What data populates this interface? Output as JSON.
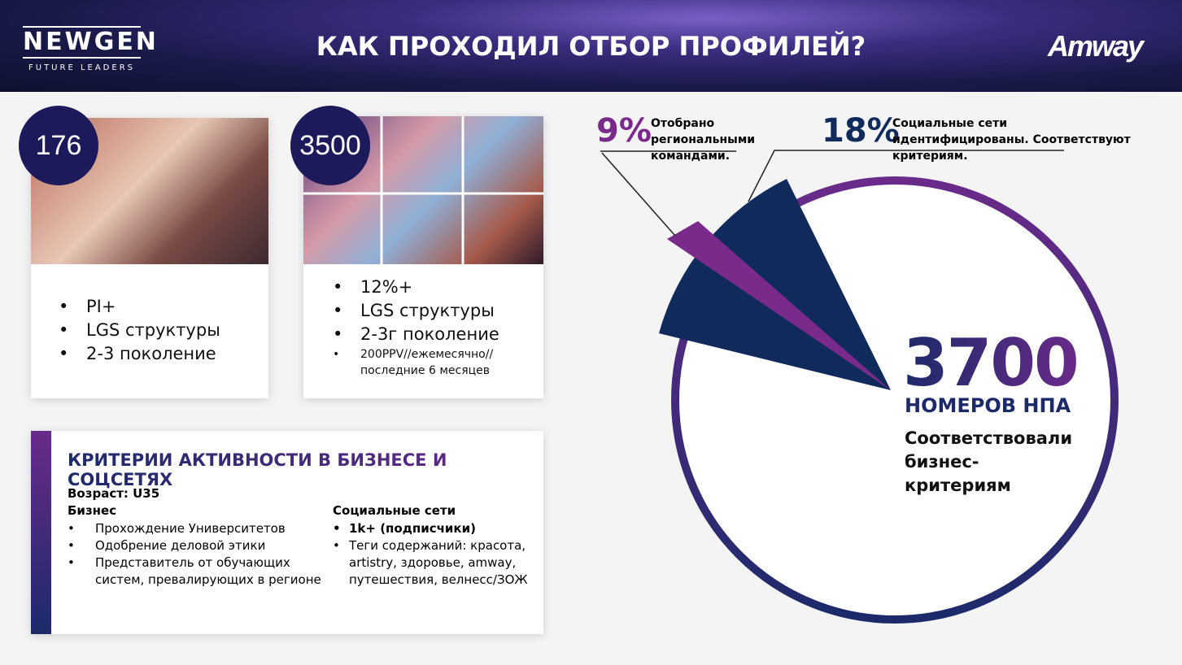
{
  "header": {
    "logo_title": "NEWGEN",
    "logo_subtitle": "FUTURE LEADERS",
    "title": "КАК ПРОХОДИЛ ОТБОР ПРОФИЛЕЙ?",
    "brand": "Amway"
  },
  "cards": [
    {
      "count": 176,
      "items": [
        "PI+",
        "LGS структуры",
        "2-3  поколение"
      ]
    },
    {
      "count": 3500,
      "items": [
        "12%+",
        "LGS структуры",
        "2-3г поколение",
        "200PPV//ежемесячно// последние 6 месяцев"
      ]
    }
  ],
  "criteria": {
    "title": "КРИТЕРИИ АКТИВНОСТИ В БИЗНЕСЕ И СОЦСЕТЯХ",
    "age": "Возраст: U35",
    "business": {
      "heading": "Бизнес",
      "items": [
        "Прохождение Университетов",
        "Одобрение деловой этики",
        "Представитель от обучающих систем, превалирующих в регионе"
      ]
    },
    "social": {
      "heading": "Социальные сети",
      "items": [
        "1k+ (подписчики)",
        "Теги содержаний: красота, artistry, здоровье, amway, путешествия, велнесс/ЗОЖ"
      ]
    }
  },
  "pie": {
    "callouts": [
      {
        "value": "9%",
        "text": "Отобрано региональными командами."
      },
      {
        "value": "18%",
        "text": "Социальные сети идентифицированы. Соответствуют критериям."
      }
    ],
    "big_number": 3700,
    "big_label": "НОМЕРОВ НПА",
    "caption": "Соответствовали бизнес-критериям"
  }
}
